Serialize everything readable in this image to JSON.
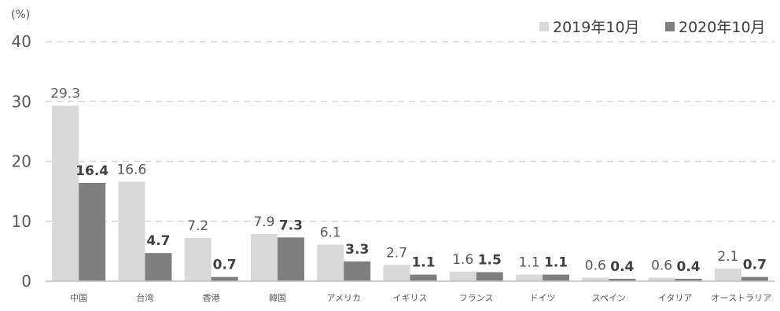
{
  "chart_data": {
    "type": "bar",
    "unit_label": "(%)",
    "categories": [
      "中国",
      "台湾",
      "香港",
      "韓国",
      "アメリカ",
      "イギリス",
      "フランス",
      "ドイツ",
      "スペイン",
      "イタリア",
      "オーストラリア"
    ],
    "series": [
      {
        "name": "2019年10月",
        "color": "#d9d9d9",
        "values": [
          29.3,
          16.6,
          7.2,
          7.9,
          6.1,
          2.7,
          1.6,
          1.1,
          0.6,
          0.6,
          2.1
        ],
        "labels": [
          "29.3",
          "16.6",
          "7.2",
          "7.9",
          "6.1",
          "2.7",
          "1.6",
          "1.1",
          "0.6",
          "0.6",
          "2.1"
        ]
      },
      {
        "name": "2020年10月",
        "color": "#7f7f7f",
        "values": [
          16.4,
          4.7,
          0.7,
          7.3,
          3.3,
          1.1,
          1.5,
          1.1,
          0.4,
          0.4,
          0.7
        ],
        "labels": [
          "16.4",
          "4.7",
          "0.7",
          "7.3",
          "3.3",
          "1.1",
          "1.5",
          "1.1",
          "0.4",
          "0.4",
          "0.7"
        ]
      }
    ],
    "ylim": [
      0,
      40
    ],
    "yticks": [
      "0",
      "10",
      "20",
      "30",
      "40"
    ],
    "grid": true,
    "legend_position": "top-right",
    "colors": {
      "grid": "#d9d9d9",
      "axis": "#bfbfbf",
      "tick_text": "#595959",
      "label_2019": "#595959",
      "label_2020": "#404040"
    }
  }
}
